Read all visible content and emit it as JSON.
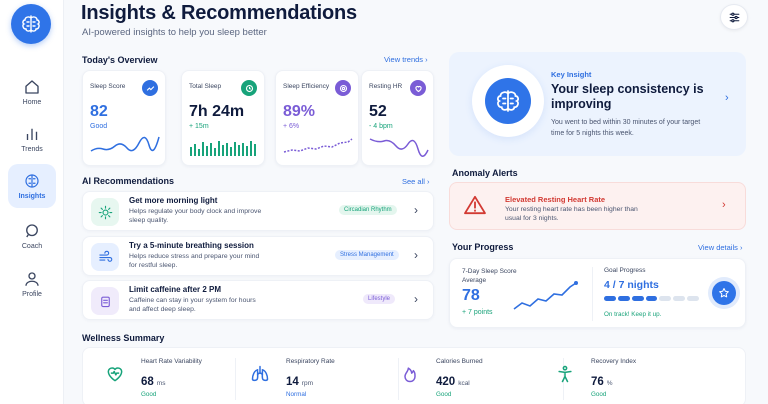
{
  "header": {
    "title": "Insights & Recommendations",
    "subtitle": "AI-powered insights to help you sleep better"
  },
  "sidebar": {
    "items": [
      {
        "label": "Home",
        "icon": "home-icon"
      },
      {
        "label": "Trends",
        "icon": "bar-chart-icon"
      },
      {
        "label": "Insights",
        "icon": "brain-icon",
        "active": true
      },
      {
        "label": "Coach",
        "icon": "chat-icon"
      },
      {
        "label": "Profile",
        "icon": "user-icon"
      }
    ]
  },
  "overview": {
    "title": "Today's Overview",
    "link": "View trends",
    "cards": [
      {
        "label": "Sleep Score",
        "value": "82",
        "sub": "Good",
        "color": "#2f6fe0",
        "icon": "trend-icon"
      },
      {
        "label": "Total Sleep",
        "value": "7h 24m",
        "sub": "+ 15m",
        "color": "#17a37a",
        "icon": "clock-icon"
      },
      {
        "label": "Sleep Efficiency",
        "value": "89%",
        "sub": "+ 6%",
        "color": "#7a5cd6",
        "icon": "target-icon"
      },
      {
        "label": "Resting HR",
        "value": "52",
        "sub": "- 4 bpm",
        "color": "#7a5cd6",
        "icon": "heart-icon"
      }
    ]
  },
  "insight": {
    "label": "Key Insight",
    "headline": "Your sleep consistency is improving",
    "body": "You went to bed within 30 minutes of your target time for 5 nights this week."
  },
  "recommendations": {
    "title": "AI Recommendations",
    "link": "See all",
    "items": [
      {
        "title": "Get more morning light",
        "desc": "Helps regulate your body clock and improve sleep quality.",
        "tag": "Circadian Rhythm",
        "tag_bg": "#e4f6ee",
        "tag_fg": "#17a37a",
        "icon": "sun-icon",
        "icon_bg": "#e7f7f0"
      },
      {
        "title": "Try a 5-minute breathing session",
        "desc": "Helps reduce stress and prepare your mind for restful sleep.",
        "tag": "Stress Management",
        "tag_bg": "#e6efff",
        "tag_fg": "#2f6fe0",
        "icon": "wind-icon",
        "icon_bg": "#e6efff"
      },
      {
        "title": "Limit caffeine after 2 PM",
        "desc": "Caffeine can stay in your system for hours and affect deep sleep.",
        "tag": "Lifestyle",
        "tag_bg": "#efe9fb",
        "tag_fg": "#7a5cd6",
        "icon": "cup-icon",
        "icon_bg": "#f0ebfb"
      }
    ]
  },
  "anomaly": {
    "section_title": "Anomaly Alerts",
    "title": "Elevated Resting Heart Rate",
    "body": "Your resting heart rate has been higher than usual for 3 nights."
  },
  "progress": {
    "title": "Your Progress",
    "link": "View details",
    "avg_label": "7-Day Sleep Score Average",
    "avg_value": "78",
    "avg_delta": "+ 7 points",
    "goal_label": "Goal Progress",
    "goal_value": "4 / 7 nights",
    "goal_done": 4,
    "goal_total": 7,
    "goal_note": "On track! Keep it up."
  },
  "wellness": {
    "title": "Wellness Summary",
    "items": [
      {
        "label": "Heart Rate Variability",
        "value": "68",
        "unit": "ms",
        "status": "Good",
        "icon": "heart-pulse-icon",
        "color": "#17a37a"
      },
      {
        "label": "Respiratory Rate",
        "value": "14",
        "unit": "rpm",
        "status": "Normal",
        "icon": "lungs-icon",
        "color": "#2f6fe0"
      },
      {
        "label": "Calories Burned",
        "value": "420",
        "unit": "kcal",
        "status": "Good",
        "icon": "flame-icon",
        "color": "#7a5cd6"
      },
      {
        "label": "Recovery Index",
        "value": "76",
        "unit": "%",
        "status": "Good",
        "icon": "person-icon",
        "color": "#17a37a"
      }
    ]
  }
}
